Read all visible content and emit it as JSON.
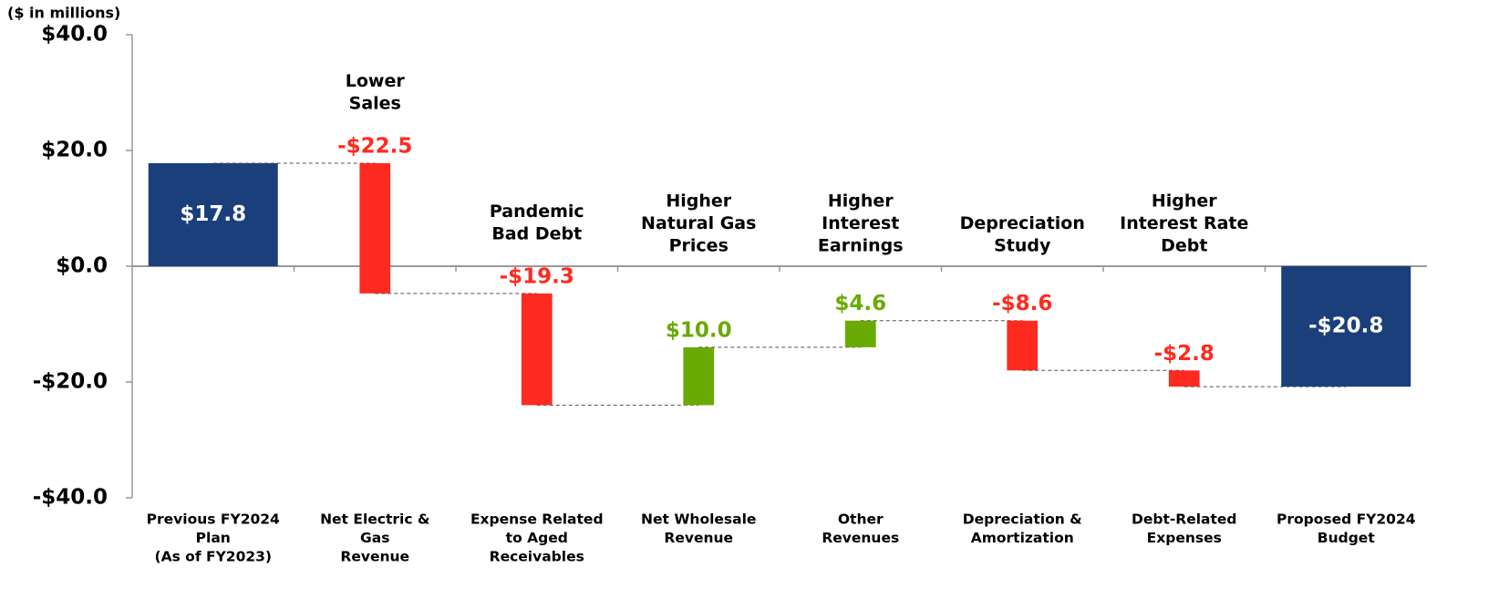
{
  "chart_data": {
    "type": "waterfall",
    "y_label": "($ in millions)",
    "categories": [
      [
        "Previous FY2024",
        "Plan",
        "(As of FY2023)"
      ],
      [
        "Net Electric &",
        "Gas",
        "Revenue"
      ],
      [
        "Expense Related",
        "to Aged",
        "Receivables"
      ],
      [
        "Net Wholesale",
        "Revenue"
      ],
      [
        "Other",
        "Revenues"
      ],
      [
        "Depreciation &",
        "Amortization"
      ],
      [
        "Debt-Related",
        "Expenses"
      ],
      [
        "Proposed FY2024",
        "Budget"
      ]
    ],
    "annotations": [
      null,
      [
        "Lower",
        "Sales"
      ],
      [
        "Pandemic",
        "Bad Debt"
      ],
      [
        "Higher",
        "Natural Gas",
        "Prices"
      ],
      [
        "Higher",
        "Interest",
        "Earnings"
      ],
      [
        "Depreciation",
        "Study"
      ],
      [
        "Higher",
        "Interest Rate",
        "Debt"
      ],
      null
    ],
    "values": [
      17.8,
      -22.5,
      -19.3,
      10.0,
      4.6,
      -8.6,
      -2.8,
      -20.8
    ],
    "value_labels": [
      "$17.8",
      "-$22.5",
      "-$19.3",
      "$10.0",
      "$4.6",
      "-$8.6",
      "-$2.8",
      "-$20.8"
    ],
    "colors": [
      "#1b3f7b",
      "#ff2a1f",
      "#ff2a1f",
      "#6aaa05",
      "#6aaa05",
      "#ff2a1f",
      "#ff2a1f",
      "#1b3f7b"
    ],
    "ylim": [
      -40,
      40
    ],
    "yticks": [
      {
        "value": -40,
        "label": "-$40.0"
      },
      {
        "value": -20,
        "label": "-$20.0"
      },
      {
        "value": 0,
        "label": "$0.0"
      },
      {
        "value": 20,
        "label": "$20.0"
      },
      {
        "value": 40,
        "label": "$40.0"
      }
    ]
  }
}
